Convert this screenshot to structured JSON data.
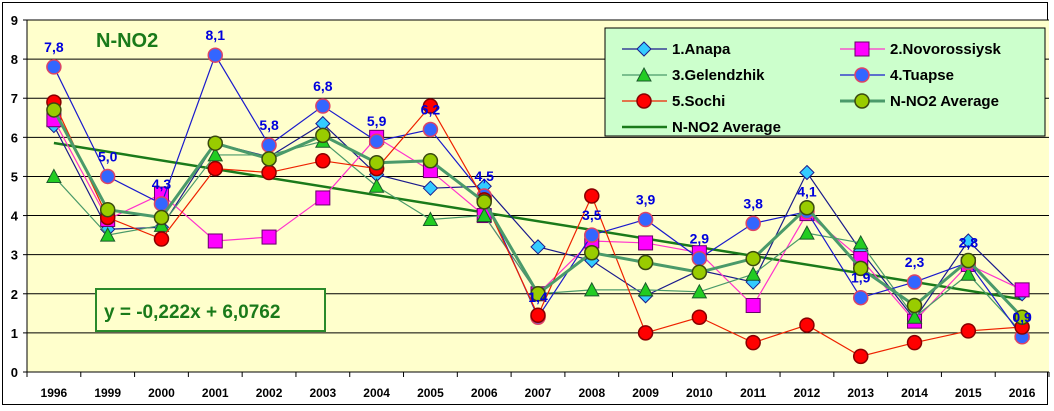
{
  "chart_data": {
    "type": "line",
    "title": "N-NO2",
    "xlabel": "",
    "ylabel": "",
    "ylim": [
      0,
      9
    ],
    "yticks": [
      "0",
      "1",
      "2",
      "3",
      "4",
      "5",
      "6",
      "7",
      "8",
      "9"
    ],
    "grid": true,
    "legend_position": "top-right",
    "categories": [
      "1996",
      "1999",
      "2000",
      "2001",
      "2002",
      "2003",
      "2004",
      "2005",
      "2006",
      "2007",
      "2008",
      "2009",
      "2010",
      "2011",
      "2012",
      "2013",
      "2014",
      "2015",
      "2016"
    ],
    "series": [
      {
        "name": "1.Anapa",
        "color": "#1a1a8c",
        "marker": "diamond",
        "marker_fill": "#33ccff",
        "values": [
          6.3,
          3.65,
          3.7,
          5.85,
          5.5,
          6.35,
          5.05,
          4.7,
          4.75,
          3.2,
          2.85,
          1.95,
          2.6,
          2.3,
          5.1,
          3.1,
          1.35,
          3.35,
          2.0
        ]
      },
      {
        "name": "2.Novorossiysk",
        "color": "#ff33cc",
        "marker": "square",
        "marker_fill": "#ff00ff",
        "values": [
          6.45,
          3.9,
          4.55,
          3.35,
          3.45,
          4.45,
          6.0,
          5.15,
          4.0,
          2.0,
          3.35,
          3.3,
          3.05,
          1.7,
          4.05,
          2.9,
          1.3,
          2.75,
          2.1
        ]
      },
      {
        "name": "3.Gelendzhik",
        "color": "#4a9a6a",
        "marker": "triangle",
        "marker_fill": "#22cc22",
        "values": [
          5.0,
          3.5,
          3.75,
          5.55,
          5.55,
          5.9,
          4.75,
          3.9,
          4.0,
          2.0,
          2.1,
          2.1,
          2.05,
          2.5,
          3.55,
          3.3,
          1.4,
          2.5,
          1.0
        ]
      },
      {
        "name": "4.Tuapse",
        "color": "#1a1acc",
        "marker": "circle",
        "marker_fill": "#3366ff",
        "values": [
          7.8,
          5.0,
          4.3,
          8.1,
          5.8,
          6.8,
          5.9,
          6.2,
          4.5,
          1.4,
          3.5,
          3.9,
          2.9,
          3.8,
          4.1,
          1.9,
          2.3,
          2.8,
          0.9
        ]
      },
      {
        "name": "5.Sochi",
        "color": "#ee2200",
        "marker": "circle",
        "marker_fill": "#ff0000",
        "values": [
          6.9,
          3.95,
          3.4,
          5.2,
          5.1,
          5.4,
          5.2,
          6.8,
          4.4,
          1.45,
          4.5,
          1.0,
          1.4,
          0.75,
          1.2,
          0.4,
          0.75,
          1.05,
          1.15
        ]
      },
      {
        "name": "N-NO2 Average",
        "color": "#4a9a6a",
        "marker": "circle",
        "marker_fill": "#99cc00",
        "values": [
          6.7,
          4.15,
          3.95,
          5.85,
          5.45,
          6.05,
          5.35,
          5.4,
          4.35,
          2.0,
          3.05,
          2.8,
          2.55,
          2.9,
          4.2,
          2.65,
          1.7,
          2.85,
          1.4
        ]
      }
    ],
    "data_labels": [
      {
        "category": "1996",
        "text": "7,8"
      },
      {
        "category": "1999",
        "text": "5,0"
      },
      {
        "category": "2000",
        "text": "4,3"
      },
      {
        "category": "2001",
        "text": "8,1"
      },
      {
        "category": "2002",
        "text": "5,8"
      },
      {
        "category": "2003",
        "text": "6,8"
      },
      {
        "category": "2004",
        "text": "5,9"
      },
      {
        "category": "2005",
        "text": "6,2"
      },
      {
        "category": "2006",
        "text": "4,5"
      },
      {
        "category": "2007",
        "text": "1,4"
      },
      {
        "category": "2008",
        "text": "3,5"
      },
      {
        "category": "2009",
        "text": "3,9"
      },
      {
        "category": "2010",
        "text": "2,9"
      },
      {
        "category": "2011",
        "text": "3,8"
      },
      {
        "category": "2012",
        "text": "4,1"
      },
      {
        "category": "2013",
        "text": "1,9"
      },
      {
        "category": "2014",
        "text": "2,3"
      },
      {
        "category": "2015",
        "text": "2,8"
      },
      {
        "category": "2016",
        "text": "0,9"
      }
    ],
    "trendline": {
      "name": "N-NO2 Average",
      "color": "#1a7a1a",
      "slope": -0.222,
      "intercept": 6.0762,
      "equation": "y = -0,222x + 6,0762"
    },
    "colors": {
      "plot_background": "#ffffcc",
      "legend_background": "#ccffcc",
      "title": "#1a7a1a",
      "data_label": "#0000dd"
    }
  }
}
